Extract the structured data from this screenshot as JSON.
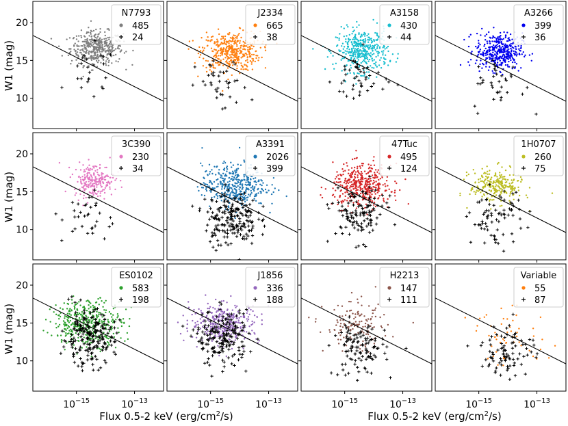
{
  "figure": {
    "ylabel": "W1 (mag)",
    "xlabel_main": "Flux 0.5-2 keV (erg/cm",
    "xlabel_sup": "2",
    "xlabel_end": "/s)",
    "ytick_labels": [
      "10",
      "15",
      "20"
    ],
    "xtick_base": "10",
    "xtick_exps": [
      "−15",
      "−13"
    ]
  },
  "chart_data": {
    "type": "scatter",
    "x_scale": "log",
    "xlim_log10": [
      -16.5,
      -12.0
    ],
    "ylim": [
      6.0,
      22.8
    ],
    "yticks": [
      10,
      15,
      20
    ],
    "xticks_log10": [
      -15,
      -13
    ],
    "dividing_line": {
      "x_log10": [
        -16.5,
        -12.0
      ],
      "y": [
        18.3,
        9.6
      ]
    },
    "panels": [
      {
        "name": "N7793",
        "color": "#7f7f7f",
        "count_colored": "485",
        "count_black": "24",
        "cx": -14.3,
        "cy": 16.6,
        "sx": 0.45,
        "sy": 1.1,
        "cross_cx": -14.5,
        "cross_cy": 13.2
      },
      {
        "name": "J2334",
        "color": "#ff7f0e",
        "count_colored": "665",
        "count_black": "38",
        "cx": -14.3,
        "cy": 16.2,
        "sx": 0.5,
        "sy": 1.3,
        "cross_cx": -14.6,
        "cross_cy": 11.5
      },
      {
        "name": "A3158",
        "color": "#17becf",
        "count_colored": "430",
        "count_black": "44",
        "cx": -14.4,
        "cy": 16.3,
        "sx": 0.45,
        "sy": 1.4,
        "cross_cx": -14.5,
        "cross_cy": 12.5
      },
      {
        "name": "A3266",
        "color": "#0000ee",
        "count_colored": "399",
        "count_black": "36",
        "cx": -14.3,
        "cy": 16.2,
        "sx": 0.4,
        "sy": 1.2,
        "cross_cx": -14.3,
        "cross_cy": 11.8
      },
      {
        "name": "3C390",
        "color": "#e377c2",
        "count_colored": "230",
        "count_black": "34",
        "cx": -14.4,
        "cy": 16.5,
        "sx": 0.35,
        "sy": 1.1,
        "cross_cx": -14.6,
        "cross_cy": 11.5
      },
      {
        "name": "A3391",
        "color": "#1f77b4",
        "count_colored": "2026",
        "count_black": "399",
        "cx": -14.2,
        "cy": 15.8,
        "sx": 0.55,
        "sy": 1.4,
        "cross_cx": -14.3,
        "cross_cy": 11.5
      },
      {
        "name": "47Tuc",
        "color": "#d62728",
        "count_colored": "495",
        "count_black": "124",
        "cx": -14.4,
        "cy": 15.8,
        "sx": 0.5,
        "sy": 1.4,
        "cross_cx": -14.5,
        "cross_cy": 12.0
      },
      {
        "name": "1H0707",
        "color": "#bcbd22",
        "count_colored": "260",
        "count_black": "75",
        "cx": -14.4,
        "cy": 15.8,
        "sx": 0.45,
        "sy": 1.1,
        "cross_cx": -14.4,
        "cross_cy": 11.5
      },
      {
        "name": "ES0102",
        "color": "#2ca02c",
        "count_colored": "583",
        "count_black": "198",
        "cx": -14.6,
        "cy": 15.0,
        "sx": 0.6,
        "sy": 1.5,
        "cross_cx": -14.6,
        "cross_cy": 13.0
      },
      {
        "name": "J1856",
        "color": "#9467bd",
        "count_colored": "336",
        "count_black": "188",
        "cx": -14.5,
        "cy": 15.0,
        "sx": 0.6,
        "sy": 1.3,
        "cross_cx": -14.6,
        "cross_cy": 13.0
      },
      {
        "name": "H2213",
        "color": "#8c564b",
        "count_colored": "147",
        "count_black": "111",
        "cx": -14.6,
        "cy": 14.5,
        "sx": 0.55,
        "sy": 1.6,
        "cross_cx": -14.5,
        "cross_cy": 11.5
      },
      {
        "name": "Variable",
        "color": "#ff7f0e",
        "count_colored": "55",
        "count_black": "87",
        "cx": -13.9,
        "cy": 13.0,
        "sx": 0.7,
        "sy": 1.8,
        "cross_cx": -14.0,
        "cross_cy": 11.5
      }
    ]
  }
}
